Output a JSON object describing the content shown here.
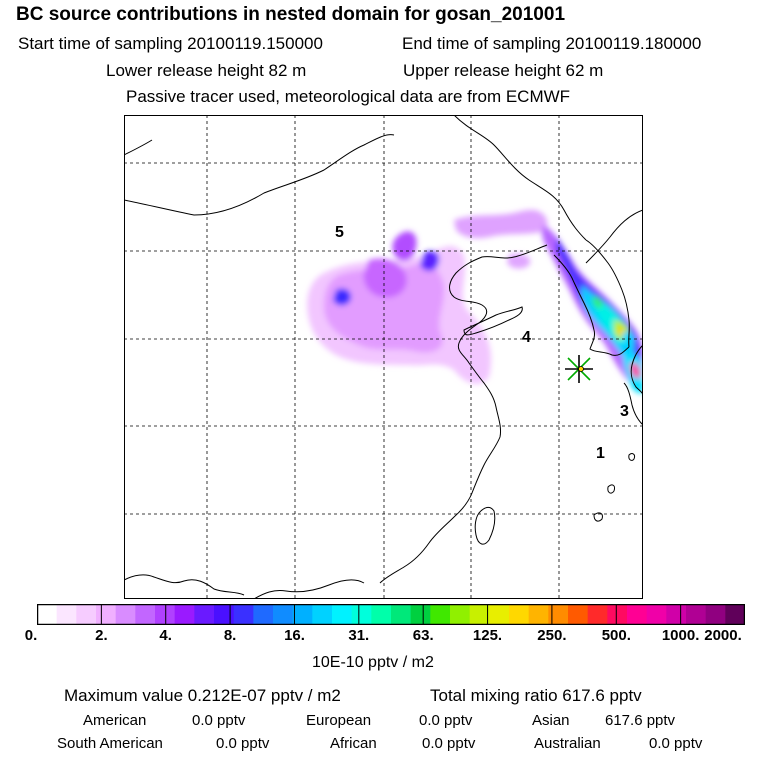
{
  "header": {
    "title": "BC  source contributions in nested domain for gosan_201001",
    "start_time": "Start time of sampling 20100119.150000",
    "end_time": "End time of sampling 20100119.180000",
    "lower_release": "Lower release height   82 m",
    "upper_release": "Upper release height   62 m",
    "tracer_note": "Passive tracer used, meteorological data are from ECMWF"
  },
  "map": {
    "region_labels": [
      "5",
      "4",
      "3",
      "1"
    ],
    "receptor": "gosan-receptor-star"
  },
  "colorbar": {
    "colors": [
      "#ffffff",
      "#fbe6ff",
      "#f6ccff",
      "#f0b0ff",
      "#d98cff",
      "#c266ff",
      "#b040ff",
      "#9a1aff",
      "#6a1aff",
      "#4a10ff",
      "#3a30ff",
      "#1f6aff",
      "#108cff",
      "#00b0ff",
      "#00d2ff",
      "#00f2ff",
      "#00ffdc",
      "#00ffaa",
      "#00e87a",
      "#00d040",
      "#40e800",
      "#90f000",
      "#c8f000",
      "#e8ee00",
      "#ffd800",
      "#ffb400",
      "#ff8c00",
      "#ff5a00",
      "#ff2a2a",
      "#ff0a60",
      "#ff0094",
      "#f000a8",
      "#d000a8",
      "#b00094",
      "#900080",
      "#60005a"
    ],
    "ticks": [
      "0.",
      "2.",
      "4.",
      "8.",
      "16.",
      "31.",
      "63.",
      "125.",
      "250.",
      "500.",
      "1000.",
      "2000."
    ],
    "unit": "10E-10 pptv / m2"
  },
  "summary": {
    "max_value": "Maximum value  0.212E-07 pptv / m2",
    "total_mixing": "Total mixing ratio      617.6 pptv"
  },
  "regions": [
    {
      "name": "American",
      "value": "0.0 pptv"
    },
    {
      "name": "European",
      "value": "0.0 pptv"
    },
    {
      "name": "Asian",
      "value": "617.6 pptv"
    },
    {
      "name": "South American",
      "value": "0.0 pptv"
    },
    {
      "name": "African",
      "value": "0.0 pptv"
    },
    {
      "name": "Australian",
      "value": "0.0 pptv"
    }
  ]
}
